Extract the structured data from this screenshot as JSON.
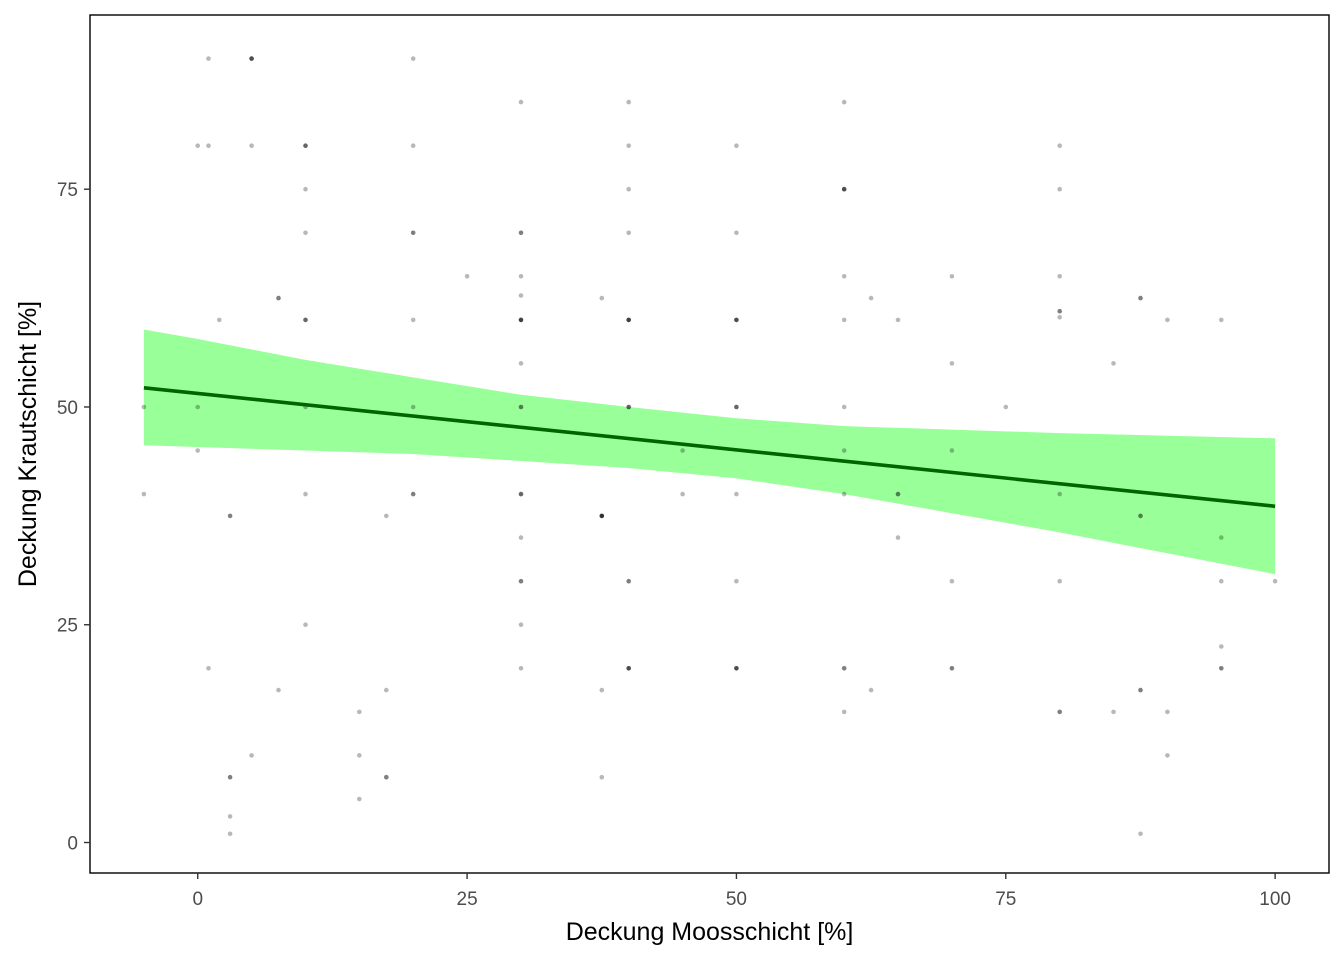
{
  "chart_data": {
    "type": "scatter",
    "title": "",
    "xlabel": "Deckung Moosschicht [%]",
    "ylabel": "Deckung Krautschicht [%]",
    "xlim": [
      -10,
      105
    ],
    "ylim": [
      -3.5,
      95
    ],
    "x_ticks": [
      0,
      25,
      50,
      75,
      100
    ],
    "x_tick_labels": [
      "0",
      "25",
      "50",
      "75",
      "100"
    ],
    "y_ticks": [
      0,
      25,
      50,
      75
    ],
    "y_tick_labels": [
      "0",
      "25",
      "50",
      "75"
    ],
    "grid": false,
    "legend": "none",
    "colors": {
      "points": "#000000",
      "fit_line": "#006400",
      "confidence_band": "#99ff99",
      "panel_border": "#000000",
      "tick_text": "#4d4d4d"
    },
    "points": [
      {
        "x": -5,
        "y": 50,
        "opacity": 0.28
      },
      {
        "x": -5,
        "y": 40,
        "opacity": 0.28
      },
      {
        "x": 0,
        "y": 80,
        "opacity": 0.28
      },
      {
        "x": 0,
        "y": 50,
        "opacity": 0.28
      },
      {
        "x": 0,
        "y": 45,
        "opacity": 0.28
      },
      {
        "x": 1,
        "y": 90,
        "opacity": 0.28
      },
      {
        "x": 1,
        "y": 80,
        "opacity": 0.28
      },
      {
        "x": 1,
        "y": 20,
        "opacity": 0.28
      },
      {
        "x": 2,
        "y": 60,
        "opacity": 0.28
      },
      {
        "x": 3,
        "y": 37.5,
        "opacity": 0.5
      },
      {
        "x": 3,
        "y": 7.5,
        "opacity": 0.5
      },
      {
        "x": 3,
        "y": 3,
        "opacity": 0.28
      },
      {
        "x": 3,
        "y": 1,
        "opacity": 0.28
      },
      {
        "x": 5,
        "y": 90,
        "opacity": 0.7
      },
      {
        "x": 5,
        "y": 80,
        "opacity": 0.28
      },
      {
        "x": 5,
        "y": 10,
        "opacity": 0.28
      },
      {
        "x": 7.5,
        "y": 62.5,
        "opacity": 0.5
      },
      {
        "x": 7.5,
        "y": 17.5,
        "opacity": 0.28
      },
      {
        "x": 10,
        "y": 80,
        "opacity": 0.6
      },
      {
        "x": 10,
        "y": 75,
        "opacity": 0.28
      },
      {
        "x": 10,
        "y": 70,
        "opacity": 0.28
      },
      {
        "x": 10,
        "y": 60,
        "opacity": 0.6
      },
      {
        "x": 10,
        "y": 50,
        "opacity": 0.28
      },
      {
        "x": 10,
        "y": 40,
        "opacity": 0.28
      },
      {
        "x": 10,
        "y": 25,
        "opacity": 0.28
      },
      {
        "x": 15,
        "y": 15,
        "opacity": 0.28
      },
      {
        "x": 15,
        "y": 10,
        "opacity": 0.28
      },
      {
        "x": 15,
        "y": 5,
        "opacity": 0.28
      },
      {
        "x": 17.5,
        "y": 37.5,
        "opacity": 0.28
      },
      {
        "x": 17.5,
        "y": 17.5,
        "opacity": 0.28
      },
      {
        "x": 17.5,
        "y": 7.5,
        "opacity": 0.5
      },
      {
        "x": 20,
        "y": 90,
        "opacity": 0.28
      },
      {
        "x": 20,
        "y": 80,
        "opacity": 0.28
      },
      {
        "x": 20,
        "y": 70,
        "opacity": 0.5
      },
      {
        "x": 20,
        "y": 60,
        "opacity": 0.28
      },
      {
        "x": 20,
        "y": 50,
        "opacity": 0.28
      },
      {
        "x": 20,
        "y": 40,
        "opacity": 0.5
      },
      {
        "x": 25,
        "y": 65,
        "opacity": 0.28
      },
      {
        "x": 30,
        "y": 85,
        "opacity": 0.28
      },
      {
        "x": 30,
        "y": 70,
        "opacity": 0.5
      },
      {
        "x": 30,
        "y": 65,
        "opacity": 0.28
      },
      {
        "x": 30,
        "y": 62.8,
        "opacity": 0.28
      },
      {
        "x": 30,
        "y": 60,
        "opacity": 0.75
      },
      {
        "x": 30,
        "y": 55,
        "opacity": 0.28
      },
      {
        "x": 30,
        "y": 50,
        "opacity": 0.5
      },
      {
        "x": 30,
        "y": 40,
        "opacity": 0.6
      },
      {
        "x": 30,
        "y": 35,
        "opacity": 0.28
      },
      {
        "x": 30,
        "y": 30,
        "opacity": 0.5
      },
      {
        "x": 30,
        "y": 25,
        "opacity": 0.28
      },
      {
        "x": 30,
        "y": 20,
        "opacity": 0.28
      },
      {
        "x": 37.5,
        "y": 62.5,
        "opacity": 0.28
      },
      {
        "x": 37.5,
        "y": 37.5,
        "opacity": 0.8
      },
      {
        "x": 37.5,
        "y": 17.5,
        "opacity": 0.28
      },
      {
        "x": 37.5,
        "y": 7.5,
        "opacity": 0.28
      },
      {
        "x": 40,
        "y": 85,
        "opacity": 0.28
      },
      {
        "x": 40,
        "y": 80,
        "opacity": 0.28
      },
      {
        "x": 40,
        "y": 75,
        "opacity": 0.28
      },
      {
        "x": 40,
        "y": 70,
        "opacity": 0.28
      },
      {
        "x": 40,
        "y": 60,
        "opacity": 0.75
      },
      {
        "x": 40,
        "y": 50,
        "opacity": 0.6
      },
      {
        "x": 40,
        "y": 30,
        "opacity": 0.5
      },
      {
        "x": 40,
        "y": 20,
        "opacity": 0.7
      },
      {
        "x": 45,
        "y": 45,
        "opacity": 0.28
      },
      {
        "x": 45,
        "y": 40,
        "opacity": 0.28
      },
      {
        "x": 50,
        "y": 80,
        "opacity": 0.28
      },
      {
        "x": 50,
        "y": 70,
        "opacity": 0.28
      },
      {
        "x": 50,
        "y": 60,
        "opacity": 0.7
      },
      {
        "x": 50,
        "y": 50,
        "opacity": 0.6
      },
      {
        "x": 50,
        "y": 40,
        "opacity": 0.28
      },
      {
        "x": 50,
        "y": 30,
        "opacity": 0.28
      },
      {
        "x": 50,
        "y": 20,
        "opacity": 0.7
      },
      {
        "x": 60,
        "y": 85,
        "opacity": 0.28
      },
      {
        "x": 60,
        "y": 75,
        "opacity": 0.7
      },
      {
        "x": 60,
        "y": 65,
        "opacity": 0.28
      },
      {
        "x": 60,
        "y": 60,
        "opacity": 0.28
      },
      {
        "x": 60,
        "y": 50,
        "opacity": 0.28
      },
      {
        "x": 60,
        "y": 45,
        "opacity": 0.28
      },
      {
        "x": 60,
        "y": 40,
        "opacity": 0.28
      },
      {
        "x": 60,
        "y": 20,
        "opacity": 0.5
      },
      {
        "x": 60,
        "y": 15,
        "opacity": 0.28
      },
      {
        "x": 62.5,
        "y": 62.5,
        "opacity": 0.28
      },
      {
        "x": 62.5,
        "y": 17.5,
        "opacity": 0.28
      },
      {
        "x": 65,
        "y": 60,
        "opacity": 0.28
      },
      {
        "x": 65,
        "y": 40,
        "opacity": 0.5
      },
      {
        "x": 65,
        "y": 35,
        "opacity": 0.28
      },
      {
        "x": 70,
        "y": 65,
        "opacity": 0.28
      },
      {
        "x": 70,
        "y": 55,
        "opacity": 0.28
      },
      {
        "x": 70,
        "y": 45,
        "opacity": 0.28
      },
      {
        "x": 70,
        "y": 30,
        "opacity": 0.28
      },
      {
        "x": 70,
        "y": 20,
        "opacity": 0.5
      },
      {
        "x": 75,
        "y": 50,
        "opacity": 0.28
      },
      {
        "x": 80,
        "y": 80,
        "opacity": 0.28
      },
      {
        "x": 80,
        "y": 75,
        "opacity": 0.28
      },
      {
        "x": 80,
        "y": 65,
        "opacity": 0.28
      },
      {
        "x": 80,
        "y": 61,
        "opacity": 0.5
      },
      {
        "x": 80,
        "y": 60.3,
        "opacity": 0.28
      },
      {
        "x": 80,
        "y": 40,
        "opacity": 0.28
      },
      {
        "x": 80,
        "y": 30,
        "opacity": 0.28
      },
      {
        "x": 80,
        "y": 15,
        "opacity": 0.5
      },
      {
        "x": 85,
        "y": 55,
        "opacity": 0.28
      },
      {
        "x": 85,
        "y": 15,
        "opacity": 0.28
      },
      {
        "x": 87.5,
        "y": 62.5,
        "opacity": 0.5
      },
      {
        "x": 87.5,
        "y": 37.5,
        "opacity": 0.5
      },
      {
        "x": 87.5,
        "y": 17.5,
        "opacity": 0.5
      },
      {
        "x": 87.5,
        "y": 1,
        "opacity": 0.28
      },
      {
        "x": 90,
        "y": 60,
        "opacity": 0.28
      },
      {
        "x": 90,
        "y": 15,
        "opacity": 0.28
      },
      {
        "x": 90,
        "y": 10,
        "opacity": 0.28
      },
      {
        "x": 95,
        "y": 60,
        "opacity": 0.28
      },
      {
        "x": 95,
        "y": 35,
        "opacity": 0.28
      },
      {
        "x": 95,
        "y": 30,
        "opacity": 0.28
      },
      {
        "x": 95,
        "y": 22.5,
        "opacity": 0.28
      },
      {
        "x": 95,
        "y": 20,
        "opacity": 0.5
      },
      {
        "x": 100,
        "y": 30,
        "opacity": 0.28
      }
    ],
    "fit_line": {
      "x": [
        -5,
        100
      ],
      "y": [
        52.2,
        38.6
      ]
    },
    "confidence_band": {
      "x": [
        -5,
        0,
        10,
        20,
        30,
        40,
        50,
        60,
        70,
        80,
        90,
        100
      ],
      "lower": [
        45.6,
        45.4,
        45.0,
        44.6,
        43.8,
        43.0,
        41.8,
        40.0,
        37.8,
        35.6,
        33.2,
        30.8
      ],
      "upper": [
        58.9,
        57.8,
        55.4,
        53.4,
        51.4,
        50.0,
        48.7,
        47.8,
        47.4,
        47.0,
        46.7,
        46.4
      ]
    }
  }
}
